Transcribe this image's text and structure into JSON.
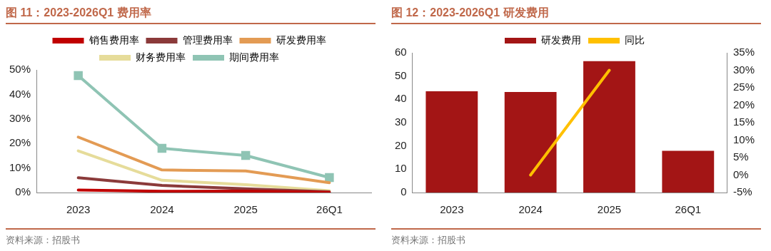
{
  "chart_data": [
    {
      "type": "line",
      "title": "图 11：2023-2026Q1 费用率",
      "categories": [
        "2023",
        "2024",
        "2025",
        "26Q1"
      ],
      "series": [
        {
          "name": "销售费用率",
          "color": "#c00000",
          "values": [
            1.0,
            0.5,
            0.6,
            0.1
          ],
          "marker": "none"
        },
        {
          "name": "管理费用率",
          "color": "#8b3a3a",
          "values": [
            6.0,
            2.9,
            1.5,
            0.3
          ],
          "marker": "none"
        },
        {
          "name": "研发费用率",
          "color": "#e39b54",
          "values": [
            22.6,
            9.2,
            8.8,
            4.0
          ],
          "marker": "none"
        },
        {
          "name": "财务费用率",
          "color": "#e6dc9a",
          "values": [
            17.0,
            5.0,
            3.2,
            0.7
          ],
          "marker": "none"
        },
        {
          "name": "期间费用率",
          "color": "#8fc4b4",
          "values": [
            47.7,
            18.0,
            15.1,
            6.1
          ],
          "marker": "square"
        }
      ],
      "ylim": [
        0,
        50
      ],
      "yticks": [
        {
          "value": 0,
          "label": "0%"
        },
        {
          "value": 10,
          "label": "10%"
        },
        {
          "value": 20,
          "label": "20%"
        },
        {
          "value": 30,
          "label": "30%"
        },
        {
          "value": 40,
          "label": "40%"
        },
        {
          "value": 50,
          "label": "50%"
        }
      ],
      "grid": false,
      "legend": "top",
      "annotations": [
        "资料来源：招股书"
      ]
    },
    {
      "type": "bar",
      "title": "图 12：2023-2026Q1 研发费用",
      "categories": [
        "2023",
        "2024",
        "2025",
        "26Q1"
      ],
      "series": [
        {
          "name": "研发费用",
          "color": "#a31515",
          "values": [
            43.5,
            43.2,
            56.4,
            17.9
          ]
        },
        {
          "name": "同比",
          "type": "line",
          "axis": "y2",
          "color": "#ffc000",
          "values": [
            null,
            0,
            30,
            null
          ],
          "marker": "none"
        }
      ],
      "ylim": [
        0,
        60
      ],
      "yticks": [
        0,
        10,
        20,
        30,
        40,
        50,
        60
      ],
      "y2lim": [
        -5,
        35
      ],
      "y2ticks": [
        {
          "value": -5,
          "label": "-5%"
        },
        {
          "value": 0,
          "label": "0%"
        },
        {
          "value": 5,
          "label": "5%"
        },
        {
          "value": 10,
          "label": "10%"
        },
        {
          "value": 15,
          "label": "15%"
        },
        {
          "value": 20,
          "label": "20%"
        },
        {
          "value": 25,
          "label": "25%"
        },
        {
          "value": 30,
          "label": "30%"
        },
        {
          "value": 35,
          "label": "35%"
        }
      ],
      "grid": false,
      "legend": "top",
      "annotations": [
        "资料来源：招股书"
      ]
    }
  ]
}
